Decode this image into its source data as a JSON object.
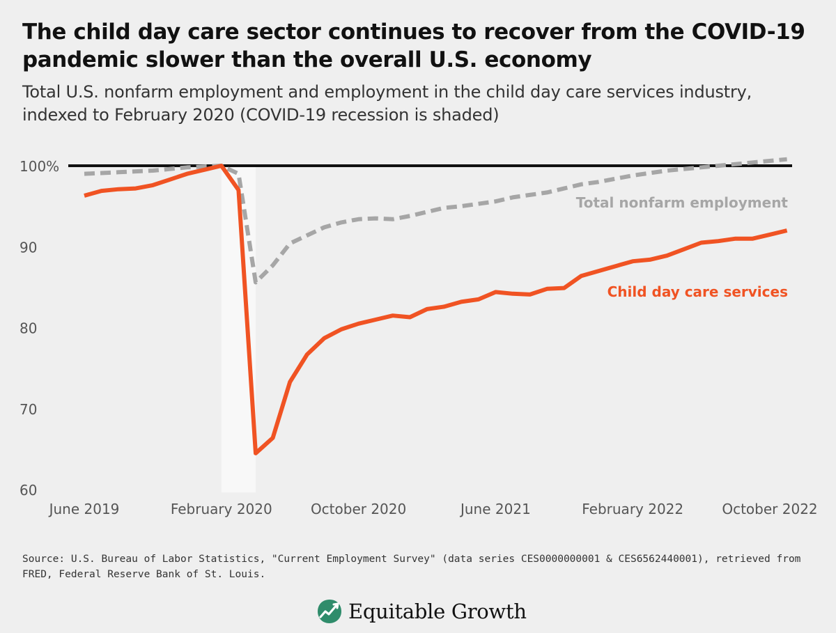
{
  "header": {
    "title": "The child day care sector continues to recover from the COVID-19 pandemic slower than the overall U.S. economy",
    "subtitle": "Total U.S. nonfarm employment and employment in the child day care services industry, indexed to February 2020 (COVID-19 recession is shaded)"
  },
  "footer": {
    "source": "Source: U.S. Bureau of Labor Statistics, \"Current Employment Survey\" (data series CES0000000001 & CES6562440001), retrieved from FRED, Federal Reserve Bank of St. Louis.",
    "brand": "Equitable Growth"
  },
  "colors": {
    "child_care": "#f05323",
    "nonfarm": "#a6a6a6",
    "reference": "#111111",
    "recession": "#f8f8f8",
    "logo_green": "#2f8c6b"
  },
  "chart_data": {
    "type": "line",
    "title": "The child day care sector continues to recover from the COVID-19 pandemic slower than the overall U.S. economy",
    "xlabel": "",
    "ylabel": "",
    "ylim": [
      60,
      101.5
    ],
    "grid": false,
    "x": [
      "2019-06",
      "2019-07",
      "2019-08",
      "2019-09",
      "2019-10",
      "2019-11",
      "2019-12",
      "2020-01",
      "2020-02",
      "2020-03",
      "2020-04",
      "2020-05",
      "2020-06",
      "2020-07",
      "2020-08",
      "2020-09",
      "2020-10",
      "2020-11",
      "2020-12",
      "2021-01",
      "2021-02",
      "2021-03",
      "2021-04",
      "2021-05",
      "2021-06",
      "2021-07",
      "2021-08",
      "2021-09",
      "2021-10",
      "2021-11",
      "2021-12",
      "2022-01",
      "2022-02",
      "2022-03",
      "2022-04",
      "2022-05",
      "2022-06",
      "2022-07",
      "2022-08",
      "2022-09",
      "2022-10",
      "2022-11"
    ],
    "x_ticks": [
      {
        "at": "2019-06",
        "label": "June 2019"
      },
      {
        "at": "2020-02",
        "label": "February 2020"
      },
      {
        "at": "2020-10",
        "label": "October 2020"
      },
      {
        "at": "2021-06",
        "label": "June 2021"
      },
      {
        "at": "2022-02",
        "label": "February 2022"
      },
      {
        "at": "2022-10",
        "label": "October 2022"
      }
    ],
    "y_ticks": [
      {
        "value": 100,
        "label": "100%"
      },
      {
        "value": 90,
        "label": "90"
      },
      {
        "value": 80,
        "label": "80"
      },
      {
        "value": 70,
        "label": "70"
      },
      {
        "value": 60,
        "label": "60"
      }
    ],
    "reference_line": 100,
    "shaded_region": {
      "from": "2020-02",
      "to": "2020-04",
      "label": "COVID-19 recession"
    },
    "series": [
      {
        "name": "Total nonfarm employment",
        "style": "dashed",
        "values": [
          99.0,
          99.1,
          99.2,
          99.3,
          99.4,
          99.6,
          99.8,
          99.9,
          100.0,
          99.0,
          85.6,
          87.7,
          90.4,
          91.4,
          92.4,
          93.0,
          93.4,
          93.5,
          93.4,
          93.8,
          94.3,
          94.8,
          95.0,
          95.3,
          95.6,
          96.1,
          96.4,
          96.7,
          97.2,
          97.7,
          98.0,
          98.4,
          98.8,
          99.1,
          99.4,
          99.6,
          99.8,
          100.0,
          100.2,
          100.4,
          100.6,
          100.8
        ]
      },
      {
        "name": "Child day care services",
        "style": "solid",
        "values": [
          96.3,
          96.9,
          97.1,
          97.2,
          97.6,
          98.3,
          99.0,
          99.5,
          100.0,
          97.0,
          64.5,
          66.4,
          73.3,
          76.7,
          78.7,
          79.8,
          80.5,
          81.0,
          81.5,
          81.3,
          82.3,
          82.6,
          83.2,
          83.5,
          84.4,
          84.2,
          84.1,
          84.8,
          84.9,
          86.4,
          87.0,
          87.6,
          88.2,
          88.4,
          88.9,
          89.7,
          90.5,
          90.7,
          91.0,
          91.0,
          91.5,
          92.0
        ]
      }
    ],
    "annotations": [
      {
        "series": "Total nonfarm employment",
        "text": "Total nonfarm employment"
      },
      {
        "series": "Child day care services",
        "text": "Child day care services"
      }
    ]
  }
}
